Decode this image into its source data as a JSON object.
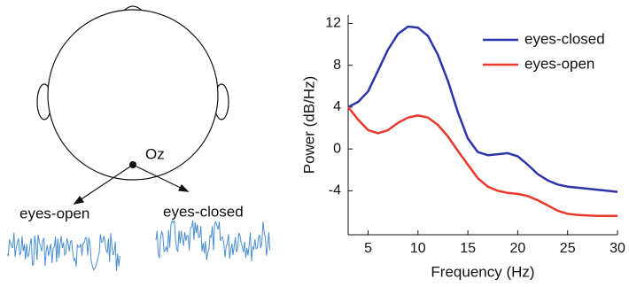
{
  "diagram": {
    "electrode": "Oz",
    "left_label": "eyes-open",
    "right_label": "eyes-closed"
  },
  "chart_data": {
    "type": "line",
    "xlabel": "Frequency (Hz)",
    "ylabel": "Power (dB/Hz)",
    "x": [
      3,
      4,
      5,
      6,
      7,
      8,
      9,
      10,
      11,
      12,
      13,
      14,
      15,
      16,
      17,
      18,
      19,
      20,
      21,
      22,
      23,
      24,
      25,
      26,
      27,
      28,
      29,
      30
    ],
    "series": [
      {
        "name": "eyes-closed",
        "color": "#2b34a8",
        "values": [
          4,
          4.5,
          5.5,
          7.5,
          9.5,
          11,
          11.7,
          11.6,
          10.8,
          9,
          6.5,
          3.5,
          1,
          -0.3,
          -0.6,
          -0.5,
          -0.4,
          -0.7,
          -1.5,
          -2.4,
          -3,
          -3.4,
          -3.6,
          -3.7,
          -3.8,
          -3.9,
          -4,
          -4.1
        ]
      },
      {
        "name": "eyes-open",
        "color": "#e8392a",
        "values": [
          4,
          2.8,
          1.8,
          1.5,
          1.8,
          2.5,
          3,
          3.2,
          3,
          2.3,
          1.2,
          -0.2,
          -1.5,
          -2.8,
          -3.6,
          -4,
          -4.2,
          -4.3,
          -4.5,
          -4.9,
          -5.4,
          -5.9,
          -6.2,
          -6.3,
          -6.35,
          -6.4,
          -6.4,
          -6.4
        ]
      }
    ],
    "xlim": [
      3,
      30
    ],
    "xticks": [
      5,
      10,
      15,
      20,
      25,
      30
    ],
    "ylim": [
      -8.2,
      12.8
    ],
    "yticks": [
      -4,
      0,
      4,
      8,
      12
    ],
    "grid": false,
    "legend": "upper right"
  }
}
